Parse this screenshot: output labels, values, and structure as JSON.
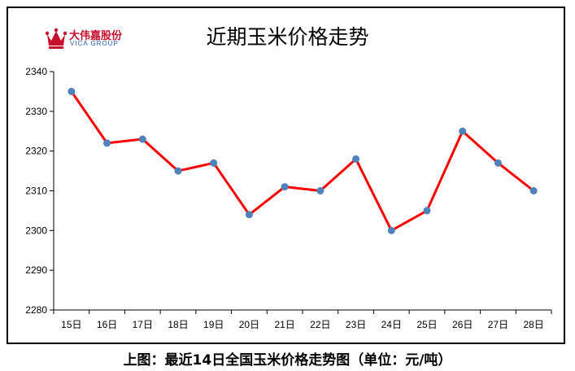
{
  "logo": {
    "text_cn": "大伟嘉股份",
    "text_en": "VICA GROUP"
  },
  "chart_data": {
    "type": "line",
    "title": "近期玉米价格走势",
    "categories": [
      "15日",
      "16日",
      "17日",
      "18日",
      "19日",
      "20日",
      "21日",
      "22日",
      "23日",
      "24日",
      "25日",
      "26日",
      "27日",
      "28日"
    ],
    "series": [
      {
        "values": [
          2335,
          2322,
          2323,
          2315,
          2317,
          2304,
          2311,
          2310,
          2318,
          2300,
          2305,
          2325,
          2317,
          2310
        ]
      }
    ],
    "ylim": [
      2280,
      2340
    ],
    "yticks": [
      2280,
      2290,
      2300,
      2310,
      2320,
      2330,
      2340
    ],
    "grid": false,
    "line_color": "#ff0000",
    "marker_color": "#4f81bd"
  },
  "caption": "上图：最近14日全国玉米价格走势图（单位：元/吨）"
}
